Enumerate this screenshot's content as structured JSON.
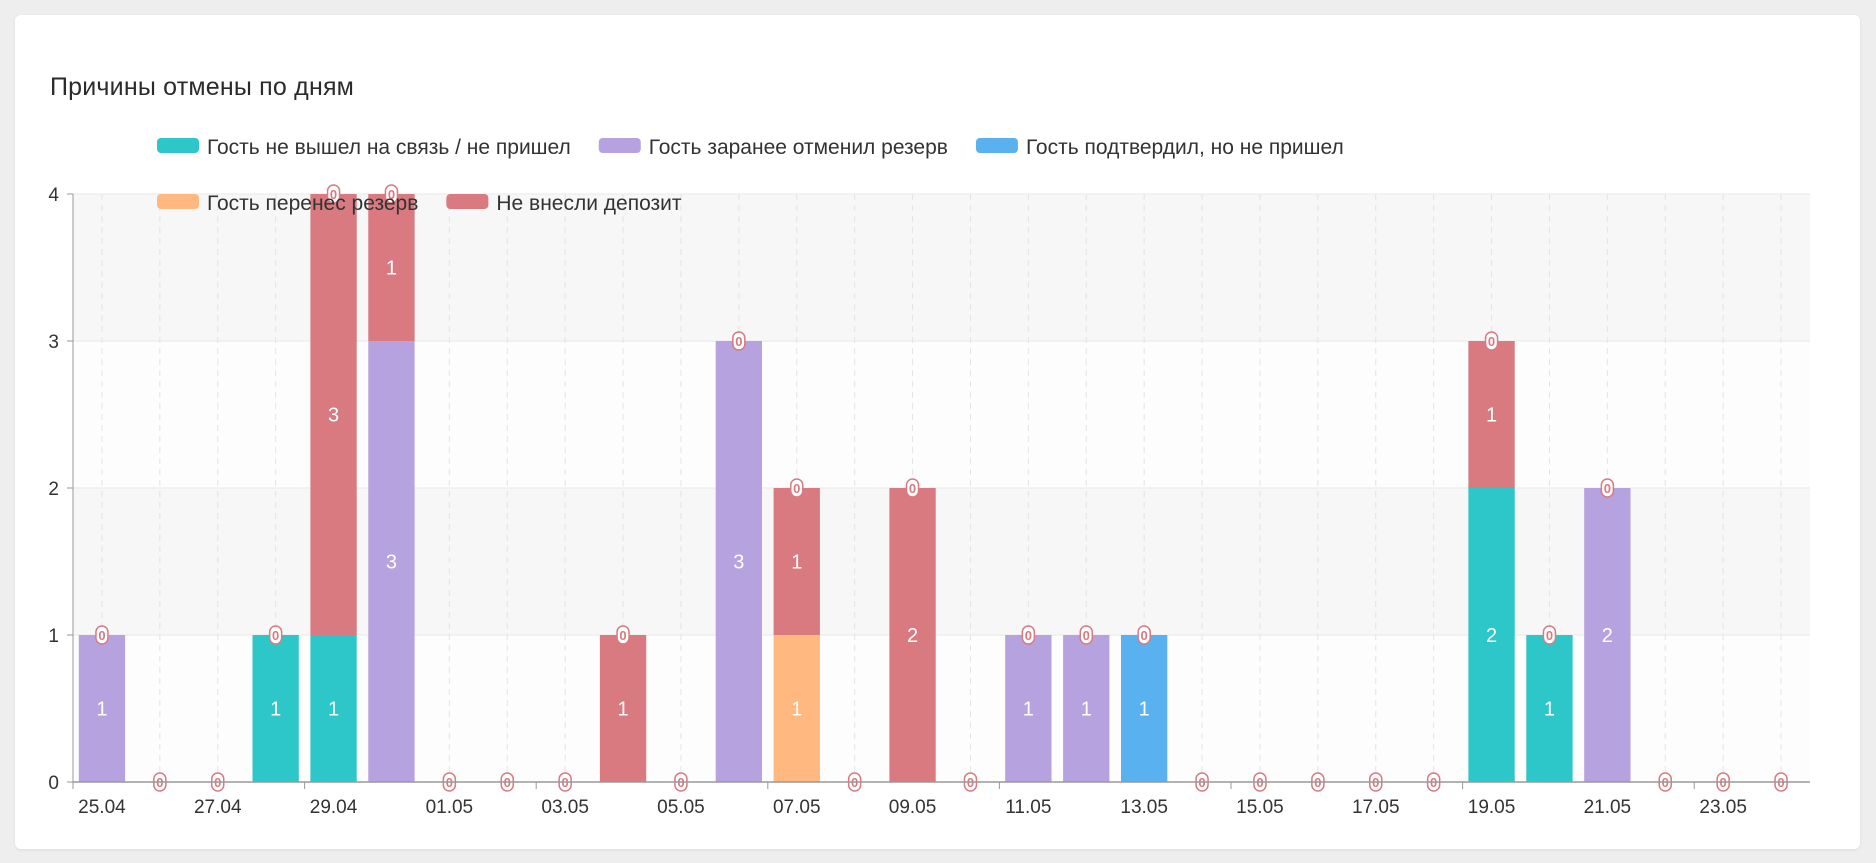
{
  "card": {
    "title": "Причины отмены по дням"
  },
  "chart_data": {
    "type": "bar",
    "stacked": true,
    "title": "Причины отмены по дням",
    "categories": [
      "25.04",
      "26.04",
      "27.04",
      "28.04",
      "29.04",
      "30.04",
      "01.05",
      "02.05",
      "03.05",
      "04.05",
      "05.05",
      "06.05",
      "07.05",
      "08.05",
      "09.05",
      "10.05",
      "11.05",
      "12.05",
      "13.05",
      "14.05",
      "15.05",
      "16.05",
      "17.05",
      "18.05",
      "19.05",
      "20.05",
      "21.05",
      "22.05",
      "23.05",
      "24.05"
    ],
    "x_tick_labels": [
      "25.04",
      "27.04",
      "29.04",
      "01.05",
      "03.05",
      "05.05",
      "07.05",
      "09.05",
      "11.05",
      "13.05",
      "15.05",
      "17.05",
      "19.05",
      "21.05",
      "23.05"
    ],
    "ylim": [
      0,
      4
    ],
    "y_ticks": [
      0,
      1,
      2,
      3,
      4
    ],
    "grid": true,
    "legend_position": "top",
    "series": [
      {
        "name": "Гость не вышел на связь / не пришел",
        "color": "#2ec7c9",
        "values": [
          0,
          0,
          0,
          1,
          1,
          0,
          0,
          0,
          0,
          0,
          0,
          0,
          0,
          0,
          0,
          0,
          0,
          0,
          0,
          0,
          0,
          0,
          0,
          0,
          2,
          1,
          0,
          0,
          0,
          0
        ]
      },
      {
        "name": "Гость заранее отменил резерв",
        "color": "#b6a2de",
        "values": [
          1,
          0,
          0,
          0,
          0,
          3,
          0,
          0,
          0,
          0,
          0,
          3,
          0,
          0,
          0,
          0,
          1,
          1,
          0,
          0,
          0,
          0,
          0,
          0,
          0,
          0,
          2,
          0,
          0,
          0
        ]
      },
      {
        "name": "Гость подтвердил, но не пришел",
        "color": "#5ab1ef",
        "values": [
          0,
          0,
          0,
          0,
          0,
          0,
          0,
          0,
          0,
          0,
          0,
          0,
          0,
          0,
          0,
          0,
          0,
          0,
          1,
          0,
          0,
          0,
          0,
          0,
          0,
          0,
          0,
          0,
          0,
          0
        ]
      },
      {
        "name": "Гость перенес резерв",
        "color": "#ffb980",
        "values": [
          0,
          0,
          0,
          0,
          0,
          0,
          0,
          0,
          0,
          0,
          0,
          0,
          1,
          0,
          0,
          0,
          0,
          0,
          0,
          0,
          0,
          0,
          0,
          0,
          0,
          0,
          0,
          0,
          0,
          0
        ]
      },
      {
        "name": "Не внесли депозит",
        "color": "#d87a80",
        "values": [
          0,
          0,
          0,
          0,
          3,
          1,
          0,
          0,
          0,
          1,
          0,
          0,
          1,
          0,
          2,
          0,
          0,
          0,
          0,
          0,
          0,
          0,
          0,
          0,
          1,
          0,
          0,
          0,
          0,
          0
        ]
      }
    ]
  }
}
